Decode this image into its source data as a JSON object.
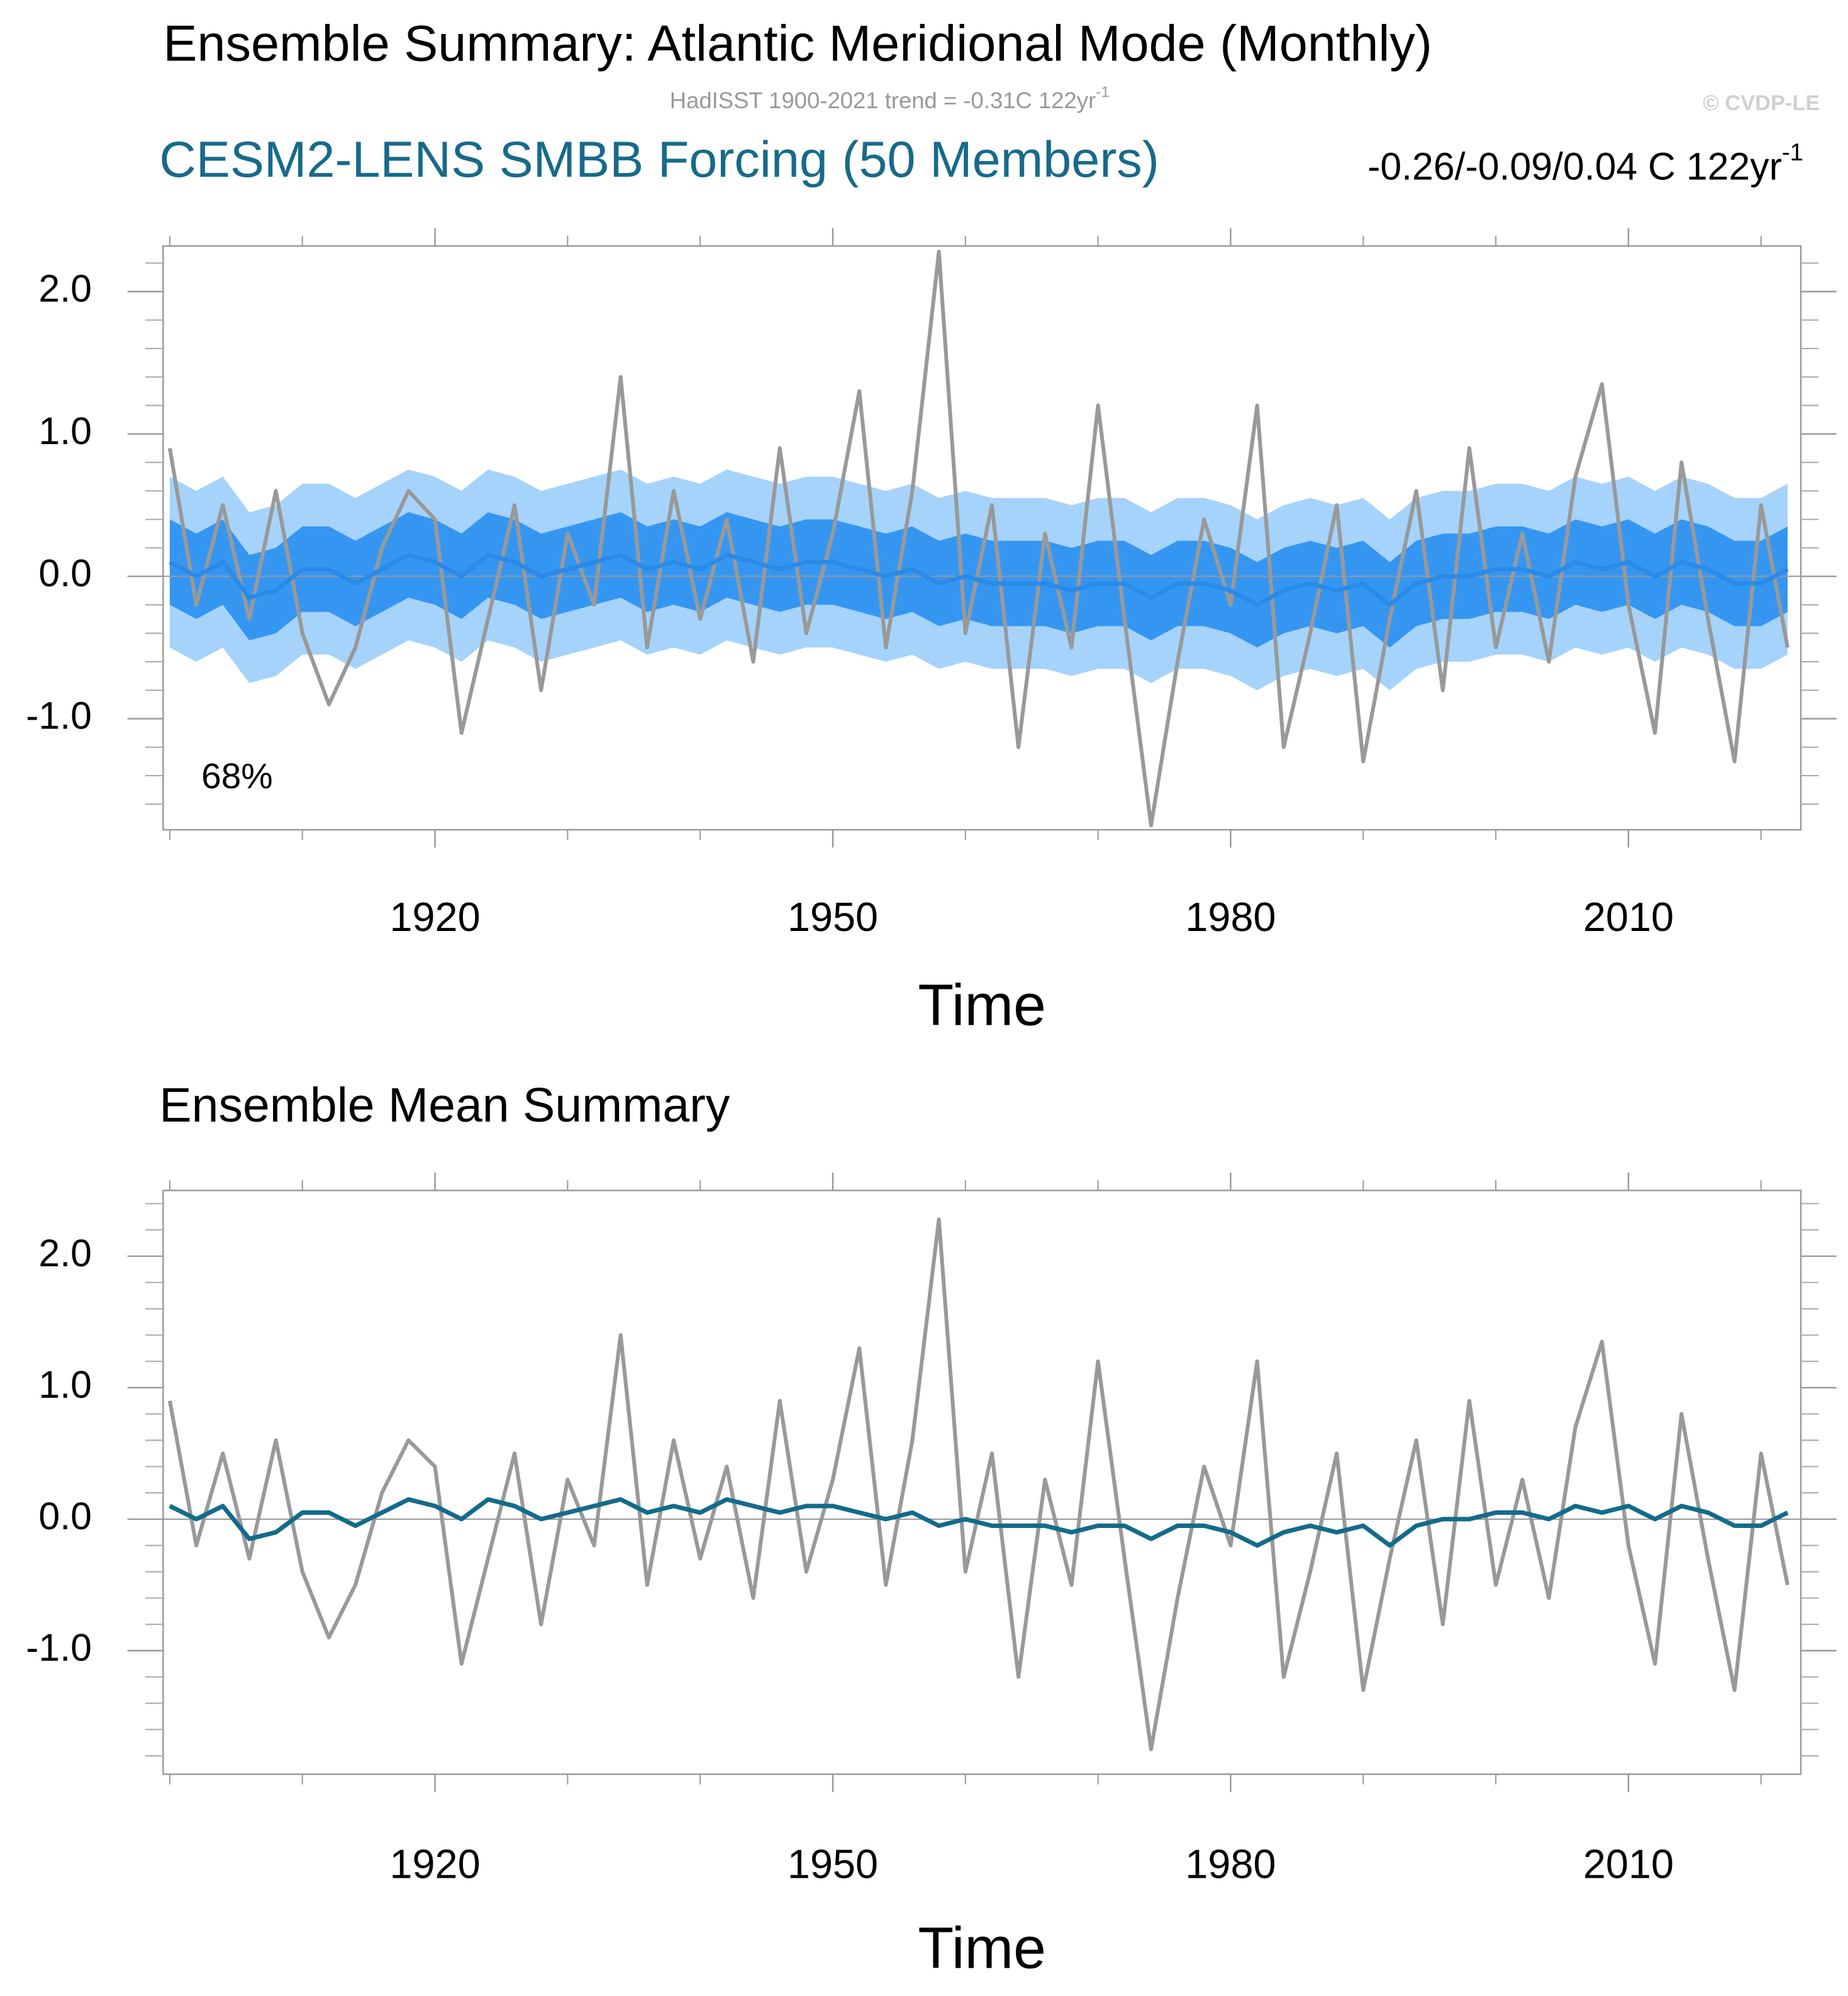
{
  "chart_data": [
    {
      "type": "line",
      "title": "Ensemble Summary: Atlantic Meridional Mode (Monthly)",
      "obs_trend": "HadISST 1900-2021 trend = -0.31C 122yr",
      "obs_trend_sup": "-1",
      "copyright": "© CVDP-LE",
      "model_label": "CESM2-LENS SMBB Forcing (50 Members)",
      "model_trend": "-0.26/-0.09/0.04 C 122yr",
      "model_trend_sup": "-1",
      "band_label": "68%",
      "xlabel": "Time",
      "x": [
        1900,
        1902,
        1904,
        1906,
        1908,
        1910,
        1912,
        1914,
        1916,
        1918,
        1920,
        1922,
        1924,
        1926,
        1928,
        1930,
        1932,
        1934,
        1936,
        1938,
        1940,
        1942,
        1944,
        1946,
        1948,
        1950,
        1952,
        1954,
        1956,
        1958,
        1960,
        1962,
        1964,
        1966,
        1968,
        1970,
        1972,
        1974,
        1976,
        1978,
        1980,
        1982,
        1984,
        1986,
        1988,
        1990,
        1992,
        1994,
        1996,
        1998,
        2000,
        2002,
        2004,
        2006,
        2008,
        2010,
        2012,
        2014,
        2016,
        2018,
        2020,
        2022
      ],
      "bands": [
        {
          "color": "#a6d3fb",
          "lower": [
            -0.5,
            -0.6,
            -0.5,
            -0.75,
            -0.7,
            -0.55,
            -0.55,
            -0.65,
            -0.55,
            -0.45,
            -0.5,
            -0.6,
            -0.45,
            -0.5,
            -0.6,
            -0.55,
            -0.5,
            -0.45,
            -0.55,
            -0.5,
            -0.55,
            -0.45,
            -0.5,
            -0.55,
            -0.5,
            -0.5,
            -0.55,
            -0.6,
            -0.55,
            -0.65,
            -0.6,
            -0.65,
            -0.65,
            -0.65,
            -0.7,
            -0.65,
            -0.65,
            -0.75,
            -0.65,
            -0.65,
            -0.7,
            -0.8,
            -0.7,
            -0.65,
            -0.7,
            -0.65,
            -0.8,
            -0.65,
            -0.6,
            -0.6,
            -0.55,
            -0.55,
            -0.6,
            -0.5,
            -0.55,
            -0.5,
            -0.6,
            -0.5,
            -0.55,
            -0.65,
            -0.65,
            -0.55
          ],
          "upper": [
            0.7,
            0.6,
            0.7,
            0.45,
            0.5,
            0.65,
            0.65,
            0.55,
            0.65,
            0.75,
            0.7,
            0.6,
            0.75,
            0.7,
            0.6,
            0.65,
            0.7,
            0.75,
            0.65,
            0.7,
            0.65,
            0.75,
            0.7,
            0.65,
            0.7,
            0.7,
            0.65,
            0.6,
            0.65,
            0.55,
            0.6,
            0.55,
            0.55,
            0.55,
            0.5,
            0.55,
            0.55,
            0.45,
            0.55,
            0.55,
            0.5,
            0.4,
            0.5,
            0.55,
            0.5,
            0.55,
            0.4,
            0.55,
            0.6,
            0.6,
            0.65,
            0.65,
            0.6,
            0.7,
            0.65,
            0.7,
            0.6,
            0.7,
            0.65,
            0.55,
            0.55,
            0.65
          ]
        },
        {
          "color": "#3596f2",
          "lower": [
            -0.2,
            -0.3,
            -0.2,
            -0.45,
            -0.4,
            -0.25,
            -0.25,
            -0.35,
            -0.25,
            -0.15,
            -0.2,
            -0.3,
            -0.15,
            -0.2,
            -0.3,
            -0.25,
            -0.2,
            -0.15,
            -0.25,
            -0.2,
            -0.25,
            -0.15,
            -0.2,
            -0.25,
            -0.2,
            -0.2,
            -0.25,
            -0.3,
            -0.25,
            -0.35,
            -0.3,
            -0.35,
            -0.35,
            -0.35,
            -0.4,
            -0.35,
            -0.35,
            -0.45,
            -0.35,
            -0.35,
            -0.4,
            -0.5,
            -0.4,
            -0.35,
            -0.4,
            -0.35,
            -0.5,
            -0.35,
            -0.3,
            -0.3,
            -0.25,
            -0.25,
            -0.3,
            -0.2,
            -0.25,
            -0.2,
            -0.3,
            -0.2,
            -0.25,
            -0.35,
            -0.35,
            -0.25
          ],
          "upper": [
            0.4,
            0.3,
            0.4,
            0.15,
            0.2,
            0.35,
            0.35,
            0.25,
            0.35,
            0.45,
            0.4,
            0.3,
            0.45,
            0.4,
            0.3,
            0.35,
            0.4,
            0.45,
            0.35,
            0.4,
            0.35,
            0.45,
            0.4,
            0.35,
            0.4,
            0.4,
            0.35,
            0.3,
            0.35,
            0.25,
            0.3,
            0.25,
            0.25,
            0.25,
            0.2,
            0.25,
            0.25,
            0.15,
            0.25,
            0.25,
            0.2,
            0.1,
            0.2,
            0.25,
            0.2,
            0.25,
            0.1,
            0.25,
            0.3,
            0.3,
            0.35,
            0.35,
            0.3,
            0.4,
            0.35,
            0.4,
            0.3,
            0.4,
            0.35,
            0.25,
            0.25,
            0.35
          ]
        }
      ],
      "series": [
        {
          "color": "#999999",
          "values": [
            0.9,
            -0.2,
            0.5,
            -0.3,
            0.6,
            -0.4,
            -0.9,
            -0.5,
            0.2,
            0.6,
            0.4,
            -1.1,
            -0.3,
            0.5,
            -0.8,
            0.3,
            -0.2,
            1.4,
            -0.5,
            0.6,
            -0.3,
            0.4,
            -0.6,
            0.9,
            -0.4,
            0.3,
            1.3,
            -0.5,
            0.6,
            2.28,
            -0.4,
            0.5,
            -1.2,
            0.3,
            -0.5,
            1.2,
            -0.3,
            -1.75,
            -0.6,
            0.4,
            -0.2,
            1.2,
            -1.2,
            -0.4,
            0.5,
            -1.3,
            -0.3,
            0.6,
            -0.8,
            0.9,
            -0.5,
            0.3,
            -0.6,
            0.7,
            1.35,
            -0.2,
            -1.1,
            0.8,
            -0.3,
            -1.3,
            0.5,
            -0.5
          ]
        },
        {
          "color": "#2a8ae8",
          "values": [
            0.1,
            0.0,
            0.1,
            -0.15,
            -0.1,
            0.05,
            0.05,
            -0.05,
            0.05,
            0.15,
            0.1,
            0.0,
            0.15,
            0.1,
            0.0,
            0.05,
            0.1,
            0.15,
            0.05,
            0.1,
            0.05,
            0.15,
            0.1,
            0.05,
            0.1,
            0.1,
            0.05,
            0.0,
            0.05,
            -0.05,
            0.0,
            -0.05,
            -0.05,
            -0.05,
            -0.1,
            -0.05,
            -0.05,
            -0.15,
            -0.05,
            -0.05,
            -0.1,
            -0.2,
            -0.1,
            -0.05,
            -0.1,
            -0.05,
            -0.2,
            -0.05,
            0.0,
            0.0,
            0.05,
            0.05,
            0.0,
            0.1,
            0.05,
            0.1,
            0.0,
            0.1,
            0.05,
            -0.05,
            -0.05,
            0.05
          ]
        }
      ],
      "reference_line": 0,
      "xlim": [
        1899.5,
        2023
      ],
      "xticks": [
        1920,
        1950,
        1980,
        2010
      ],
      "xminorticks": [
        1900,
        1910,
        1930,
        1940,
        1960,
        1970,
        1990,
        2000,
        2020
      ],
      "ylim": [
        -1.78,
        2.32
      ],
      "yticks": [
        {
          "value": -1,
          "label": "-1.0"
        },
        {
          "value": 0,
          "label": "0.0"
        },
        {
          "value": 1,
          "label": "1.0"
        },
        {
          "value": 2,
          "label": "2.0"
        }
      ],
      "yminorticks": [
        -1.6,
        -1.4,
        -1.2,
        -0.8,
        -0.6,
        -0.4,
        -0.2,
        0.2,
        0.4,
        0.6,
        0.8,
        1.2,
        1.4,
        1.6,
        1.8,
        2.2
      ]
    },
    {
      "type": "line",
      "title": "Ensemble Mean Summary",
      "xlabel": "Time",
      "x": [
        1900,
        1902,
        1904,
        1906,
        1908,
        1910,
        1912,
        1914,
        1916,
        1918,
        1920,
        1922,
        1924,
        1926,
        1928,
        1930,
        1932,
        1934,
        1936,
        1938,
        1940,
        1942,
        1944,
        1946,
        1948,
        1950,
        1952,
        1954,
        1956,
        1958,
        1960,
        1962,
        1964,
        1966,
        1968,
        1970,
        1972,
        1974,
        1976,
        1978,
        1980,
        1982,
        1984,
        1986,
        1988,
        1990,
        1992,
        1994,
        1996,
        1998,
        2000,
        2002,
        2004,
        2006,
        2008,
        2010,
        2012,
        2014,
        2016,
        2018,
        2020,
        2022
      ],
      "series": [
        {
          "color": "#999999",
          "values": [
            0.9,
            -0.2,
            0.5,
            -0.3,
            0.6,
            -0.4,
            -0.9,
            -0.5,
            0.2,
            0.6,
            0.4,
            -1.1,
            -0.3,
            0.5,
            -0.8,
            0.3,
            -0.2,
            1.4,
            -0.5,
            0.6,
            -0.3,
            0.4,
            -0.6,
            0.9,
            -0.4,
            0.3,
            1.3,
            -0.5,
            0.6,
            2.28,
            -0.4,
            0.5,
            -1.2,
            0.3,
            -0.5,
            1.2,
            -0.3,
            -1.75,
            -0.6,
            0.4,
            -0.2,
            1.2,
            -1.2,
            -0.4,
            0.5,
            -1.3,
            -0.3,
            0.6,
            -0.8,
            0.9,
            -0.5,
            0.3,
            -0.6,
            0.7,
            1.35,
            -0.2,
            -1.1,
            0.8,
            -0.3,
            -1.3,
            0.5,
            -0.5
          ]
        },
        {
          "color": "#136b8a",
          "values": [
            0.1,
            0.0,
            0.1,
            -0.15,
            -0.1,
            0.05,
            0.05,
            -0.05,
            0.05,
            0.15,
            0.1,
            0.0,
            0.15,
            0.1,
            0.0,
            0.05,
            0.1,
            0.15,
            0.05,
            0.1,
            0.05,
            0.15,
            0.1,
            0.05,
            0.1,
            0.1,
            0.05,
            0.0,
            0.05,
            -0.05,
            0.0,
            -0.05,
            -0.05,
            -0.05,
            -0.1,
            -0.05,
            -0.05,
            -0.15,
            -0.05,
            -0.05,
            -0.1,
            -0.2,
            -0.1,
            -0.05,
            -0.1,
            -0.05,
            -0.2,
            -0.05,
            0.0,
            0.0,
            0.05,
            0.05,
            0.0,
            0.1,
            0.05,
            0.1,
            0.0,
            0.1,
            0.05,
            -0.05,
            -0.05,
            0.05
          ]
        }
      ],
      "reference_line": 0,
      "xlim": [
        1899.5,
        2023
      ],
      "xticks": [
        1920,
        1950,
        1980,
        2010
      ],
      "xminorticks": [
        1900,
        1910,
        1930,
        1940,
        1960,
        1970,
        1990,
        2000,
        2020
      ],
      "ylim": [
        -1.94,
        2.5
      ],
      "yticks": [
        {
          "value": -1,
          "label": "-1.0"
        },
        {
          "value": 0,
          "label": "0.0"
        },
        {
          "value": 1,
          "label": "1.0"
        },
        {
          "value": 2,
          "label": "2.0"
        }
      ],
      "yminorticks": [
        -1.8,
        -1.6,
        -1.4,
        -1.2,
        -0.8,
        -0.6,
        -0.4,
        -0.2,
        0.2,
        0.4,
        0.6,
        0.8,
        1.2,
        1.4,
        1.6,
        1.8,
        2.2,
        2.4
      ]
    }
  ]
}
